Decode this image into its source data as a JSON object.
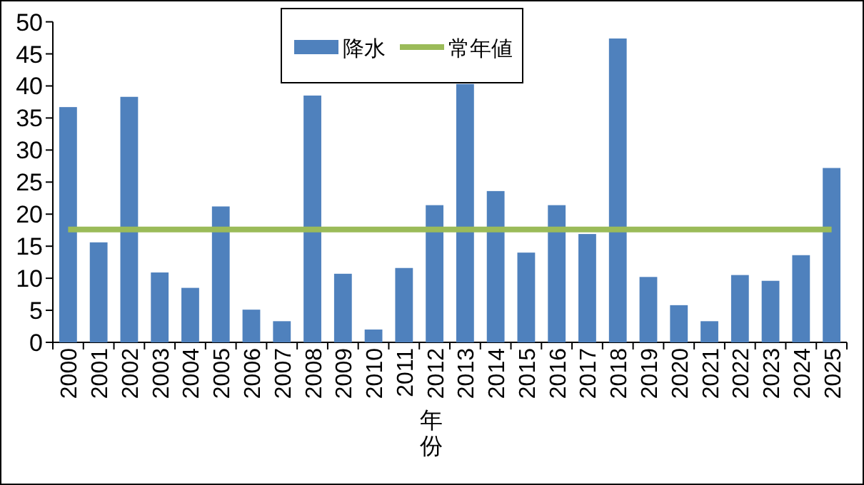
{
  "chart_data": {
    "type": "bar",
    "xlabel": "年份",
    "categories": [
      "2000",
      "2001",
      "2002",
      "2003",
      "2004",
      "2005",
      "2006",
      "2007",
      "2008",
      "2009",
      "2010",
      "2011",
      "2012",
      "2013",
      "2014",
      "2015",
      "2016",
      "2017",
      "2018",
      "2019",
      "2020",
      "2021",
      "2022",
      "2023",
      "2024",
      "2025"
    ],
    "series": [
      {
        "name": "降水",
        "color": "#4f81bd",
        "values": [
          36.7,
          15.6,
          38.3,
          10.9,
          8.5,
          21.2,
          5.1,
          3.3,
          38.5,
          10.7,
          2.0,
          11.6,
          21.4,
          40.3,
          23.6,
          14.0,
          21.4,
          16.9,
          47.4,
          10.2,
          5.8,
          3.3,
          10.5,
          9.6,
          13.6,
          27.2
        ]
      },
      {
        "name": "常年値",
        "type": "line",
        "color": "#9bbb59",
        "marker": "none",
        "values": [
          17.6,
          17.6,
          17.6,
          17.6,
          17.6,
          17.6,
          17.6,
          17.6,
          17.6,
          17.6,
          17.6,
          17.6,
          17.6,
          17.6,
          17.6,
          17.6,
          17.6,
          17.6,
          17.6,
          17.6,
          17.6,
          17.6,
          17.6,
          17.6,
          17.6,
          17.6
        ]
      }
    ],
    "ylim": [
      0,
      50
    ],
    "yticks": [
      0,
      5,
      10,
      15,
      20,
      25,
      30,
      35,
      40,
      45,
      50
    ],
    "grid": false,
    "legend": "top"
  }
}
